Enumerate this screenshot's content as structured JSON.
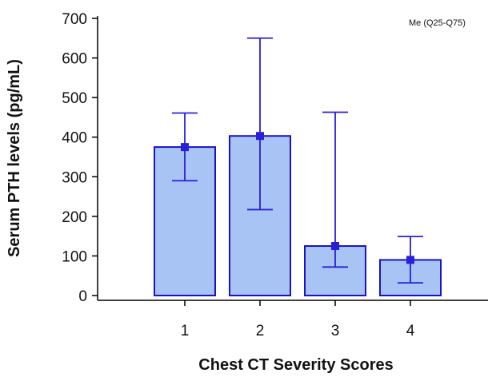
{
  "chart_data": {
    "type": "bar",
    "title": "",
    "xlabel": "Chest CT Severity Scores",
    "ylabel": "Serum PTH levels (pg/mL)",
    "ylim": [
      0,
      700
    ],
    "yticks": [
      0,
      100,
      200,
      300,
      400,
      500,
      600,
      700
    ],
    "categories": [
      "1",
      "2",
      "3",
      "4"
    ],
    "values": [
      375,
      403,
      125,
      90
    ],
    "error_low": [
      290,
      217,
      72,
      32
    ],
    "error_high": [
      461,
      650,
      463,
      149
    ],
    "annotation": "Me (Q25-Q75)",
    "grid": false,
    "colors": {
      "bar_fill": "#a7c4f5",
      "bar_stroke": "#1a12c4",
      "error": "#2a1fd9",
      "axis": "#000000"
    }
  }
}
